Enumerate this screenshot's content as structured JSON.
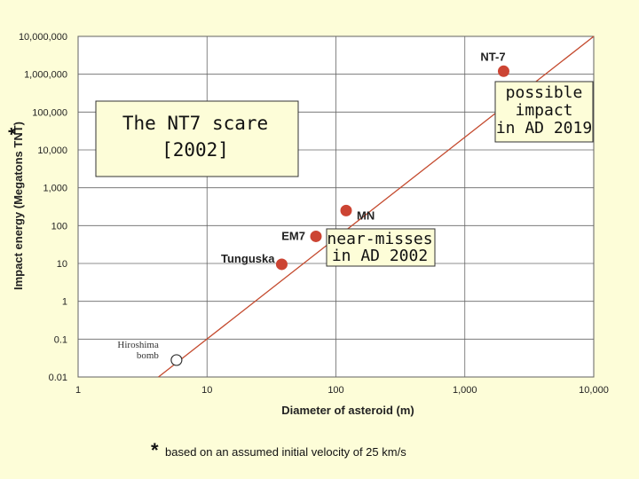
{
  "chart_data": {
    "type": "scatter",
    "xscale": "log",
    "yscale": "log",
    "xlim": [
      1,
      10000
    ],
    "ylim": [
      0.01,
      10000000
    ],
    "xlabel": "Diameter of asteroid (m)",
    "ylabel": "Impact energy (Megatons TNT)",
    "ylabel_marker": "*",
    "x_tick_labels": [
      "1",
      "10",
      "100",
      "1,000",
      "10,000"
    ],
    "y_tick_labels": [
      "0.01",
      "0.1",
      "1",
      "10",
      "100",
      "1,000",
      "10,000",
      "100,000",
      "1,000,000",
      "10,000,000"
    ],
    "grid": true,
    "trend_line": {
      "x": [
        4.2,
        10000
      ],
      "y": [
        0.01,
        10000000
      ],
      "color": "#c44a2e"
    },
    "points": [
      {
        "label": "Hiroshima\nbomb",
        "x": 5.8,
        "y": 0.028,
        "filled": false
      },
      {
        "label": "Tunguska",
        "x": 38,
        "y": 9.5,
        "filled": true
      },
      {
        "label": "EM7",
        "x": 70,
        "y": 52,
        "filled": true
      },
      {
        "label": "MN",
        "x": 120,
        "y": 250,
        "filled": true
      },
      {
        "label": "NT-7",
        "x": 2000,
        "y": 1200000,
        "filled": true
      }
    ],
    "point_color": "#cc4433"
  },
  "title_box": {
    "line1": "The NT7 scare",
    "line2": "[2002]"
  },
  "annotations": {
    "possible_impact": [
      "possible",
      "impact",
      "in AD 2019"
    ],
    "near_misses": [
      "near-misses",
      "in AD 2002"
    ]
  },
  "footnote": {
    "marker": "*",
    "text": "based on an assumed initial velocity of 25 km/s"
  }
}
